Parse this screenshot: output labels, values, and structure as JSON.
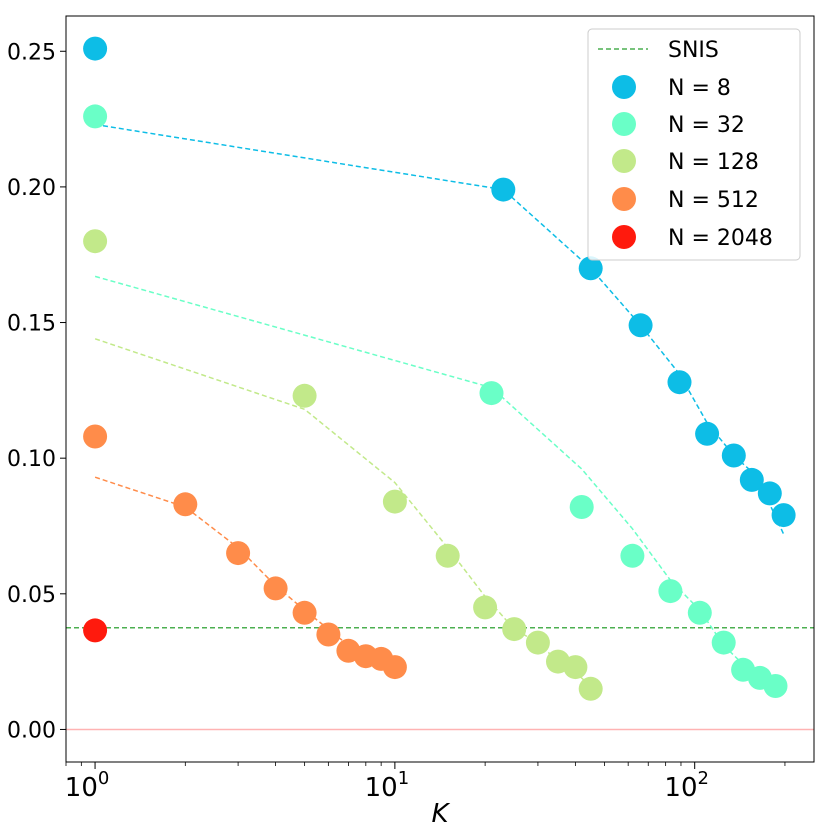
{
  "chart_data": {
    "type": "scatter",
    "title": "",
    "xlabel": "K",
    "ylabel": "",
    "x_scale": "log",
    "xlim": [
      0.8,
      250
    ],
    "ylim": [
      -0.012,
      0.263
    ],
    "x_ticks": [
      {
        "value": 1,
        "base": "10",
        "exp": "0"
      },
      {
        "value": 10,
        "base": "10",
        "exp": "1"
      },
      {
        "value": 100,
        "base": "10",
        "exp": "2"
      }
    ],
    "y_ticks": [
      {
        "value": 0.0,
        "label": "0.00"
      },
      {
        "value": 0.05,
        "label": "0.05"
      },
      {
        "value": 0.1,
        "label": "0.10"
      },
      {
        "value": 0.15,
        "label": "0.15"
      },
      {
        "value": 0.2,
        "label": "0.20"
      },
      {
        "value": 0.25,
        "label": "0.25"
      }
    ],
    "reference_lines": [
      {
        "name": "SNIS",
        "y": 0.0375,
        "color": "#4caf50",
        "style": "dashed"
      },
      {
        "name": "zero",
        "y": 0.0,
        "color": "#ffb3b3",
        "style": "solid"
      }
    ],
    "series": [
      {
        "name": "N = 8",
        "color": "#0dbde6",
        "points": [
          [
            1,
            0.251
          ],
          [
            23,
            0.199
          ],
          [
            45,
            0.17
          ],
          [
            66,
            0.149
          ],
          [
            89,
            0.128
          ],
          [
            110,
            0.109
          ],
          [
            135,
            0.101
          ],
          [
            155,
            0.092
          ],
          [
            178,
            0.087
          ],
          [
            198,
            0.079
          ]
        ],
        "fit": [
          [
            1,
            0.223
          ],
          [
            23,
            0.199
          ],
          [
            45,
            0.17
          ],
          [
            66,
            0.149
          ],
          [
            89,
            0.131
          ],
          [
            110,
            0.113
          ],
          [
            135,
            0.101
          ],
          [
            155,
            0.095
          ],
          [
            178,
            0.083
          ],
          [
            198,
            0.072
          ]
        ]
      },
      {
        "name": "N = 32",
        "color": "#6affc7",
        "points": [
          [
            1,
            0.226
          ],
          [
            21,
            0.124
          ],
          [
            42,
            0.082
          ],
          [
            62,
            0.064
          ],
          [
            83,
            0.051
          ],
          [
            104,
            0.043
          ],
          [
            125,
            0.032
          ],
          [
            145,
            0.022
          ],
          [
            165,
            0.019
          ],
          [
            186,
            0.016
          ]
        ],
        "fit": [
          [
            1,
            0.167
          ],
          [
            21,
            0.126
          ],
          [
            42,
            0.096
          ],
          [
            62,
            0.074
          ],
          [
            83,
            0.055
          ],
          [
            104,
            0.044
          ],
          [
            125,
            0.031
          ],
          [
            145,
            0.024
          ],
          [
            165,
            0.02
          ],
          [
            186,
            0.015
          ]
        ]
      },
      {
        "name": "N = 128",
        "color": "#c2e98a",
        "points": [
          [
            1,
            0.18
          ],
          [
            5,
            0.123
          ],
          [
            10,
            0.084
          ],
          [
            15,
            0.064
          ],
          [
            20,
            0.045
          ],
          [
            25,
            0.037
          ],
          [
            30,
            0.032
          ],
          [
            35,
            0.025
          ],
          [
            40,
            0.023
          ],
          [
            45,
            0.015
          ]
        ],
        "fit": [
          [
            1,
            0.144
          ],
          [
            5,
            0.118
          ],
          [
            10,
            0.091
          ],
          [
            15,
            0.067
          ],
          [
            20,
            0.049
          ],
          [
            25,
            0.037
          ],
          [
            30,
            0.032
          ],
          [
            35,
            0.025
          ],
          [
            40,
            0.021
          ],
          [
            45,
            0.016
          ]
        ]
      },
      {
        "name": "N = 512",
        "color": "#ff8c4a",
        "points": [
          [
            1,
            0.108
          ],
          [
            2,
            0.083
          ],
          [
            3,
            0.065
          ],
          [
            4,
            0.052
          ],
          [
            5,
            0.043
          ],
          [
            6,
            0.035
          ],
          [
            7,
            0.029
          ],
          [
            8,
            0.027
          ],
          [
            9,
            0.026
          ],
          [
            10,
            0.023
          ]
        ],
        "fit": [
          [
            1,
            0.093
          ],
          [
            2,
            0.082
          ],
          [
            3,
            0.067
          ],
          [
            4,
            0.053
          ],
          [
            5,
            0.044
          ],
          [
            6,
            0.037
          ],
          [
            7,
            0.031
          ],
          [
            8,
            0.028
          ],
          [
            9,
            0.025
          ],
          [
            10,
            0.023
          ]
        ]
      },
      {
        "name": "N = 2048",
        "color": "#ff1a0d",
        "points": [
          [
            1,
            0.0365
          ]
        ],
        "fit": []
      }
    ],
    "legend": {
      "position": "top-right",
      "entries": [
        "SNIS",
        "N = 8",
        "N = 32",
        "N = 128",
        "N = 512",
        "N = 2048"
      ]
    }
  }
}
